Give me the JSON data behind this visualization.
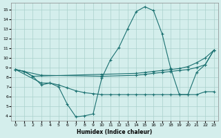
{
  "bg_color": "#d4eeec",
  "grid_color": "#aad0cc",
  "line_color": "#1a7070",
  "xlabel": "Humidex (Indice chaleur)",
  "xlim": [
    -0.5,
    23.5
  ],
  "ylim": [
    3.5,
    15.7
  ],
  "xticks": [
    0,
    1,
    2,
    3,
    4,
    5,
    6,
    7,
    8,
    9,
    10,
    11,
    12,
    13,
    14,
    15,
    16,
    17,
    18,
    19,
    20,
    21,
    22,
    23
  ],
  "yticks": [
    4,
    5,
    6,
    7,
    8,
    9,
    10,
    11,
    12,
    13,
    14,
    15
  ],
  "series": [
    {
      "x": [
        0,
        1,
        2,
        3,
        4,
        5,
        6,
        7,
        8,
        9,
        10,
        11,
        12,
        13,
        14,
        15,
        16,
        17,
        18,
        19,
        20,
        21,
        22,
        23
      ],
      "y": [
        8.8,
        8.6,
        8.1,
        7.2,
        7.4,
        7.0,
        5.2,
        3.9,
        4.0,
        4.2,
        7.9,
        9.8,
        11.1,
        13.0,
        14.8,
        15.3,
        14.9,
        12.5,
        8.9,
        6.2,
        6.2,
        8.5,
        9.3,
        10.8
      ]
    },
    {
      "x": [
        0,
        1,
        2,
        10,
        14,
        15,
        16,
        17,
        18,
        19,
        20,
        21,
        22,
        23
      ],
      "y": [
        8.8,
        8.6,
        8.1,
        8.3,
        8.4,
        8.5,
        8.6,
        8.7,
        8.8,
        8.9,
        9.1,
        9.5,
        10.0,
        10.8
      ]
    },
    {
      "x": [
        0,
        3,
        10,
        14,
        15,
        16,
        17,
        18,
        19,
        20,
        21,
        22,
        23
      ],
      "y": [
        8.8,
        8.2,
        8.1,
        8.2,
        8.3,
        8.4,
        8.5,
        8.6,
        8.7,
        8.8,
        9.0,
        9.3,
        10.8
      ]
    },
    {
      "x": [
        0,
        3,
        4,
        5,
        6,
        7,
        8,
        9,
        10,
        11,
        12,
        13,
        14,
        15,
        16,
        17,
        18,
        19,
        20,
        21,
        22,
        23
      ],
      "y": [
        8.8,
        7.4,
        7.4,
        7.2,
        6.9,
        6.6,
        6.4,
        6.3,
        6.2,
        6.2,
        6.2,
        6.2,
        6.2,
        6.2,
        6.2,
        6.2,
        6.2,
        6.2,
        6.2,
        6.2,
        6.5,
        6.5
      ]
    }
  ]
}
